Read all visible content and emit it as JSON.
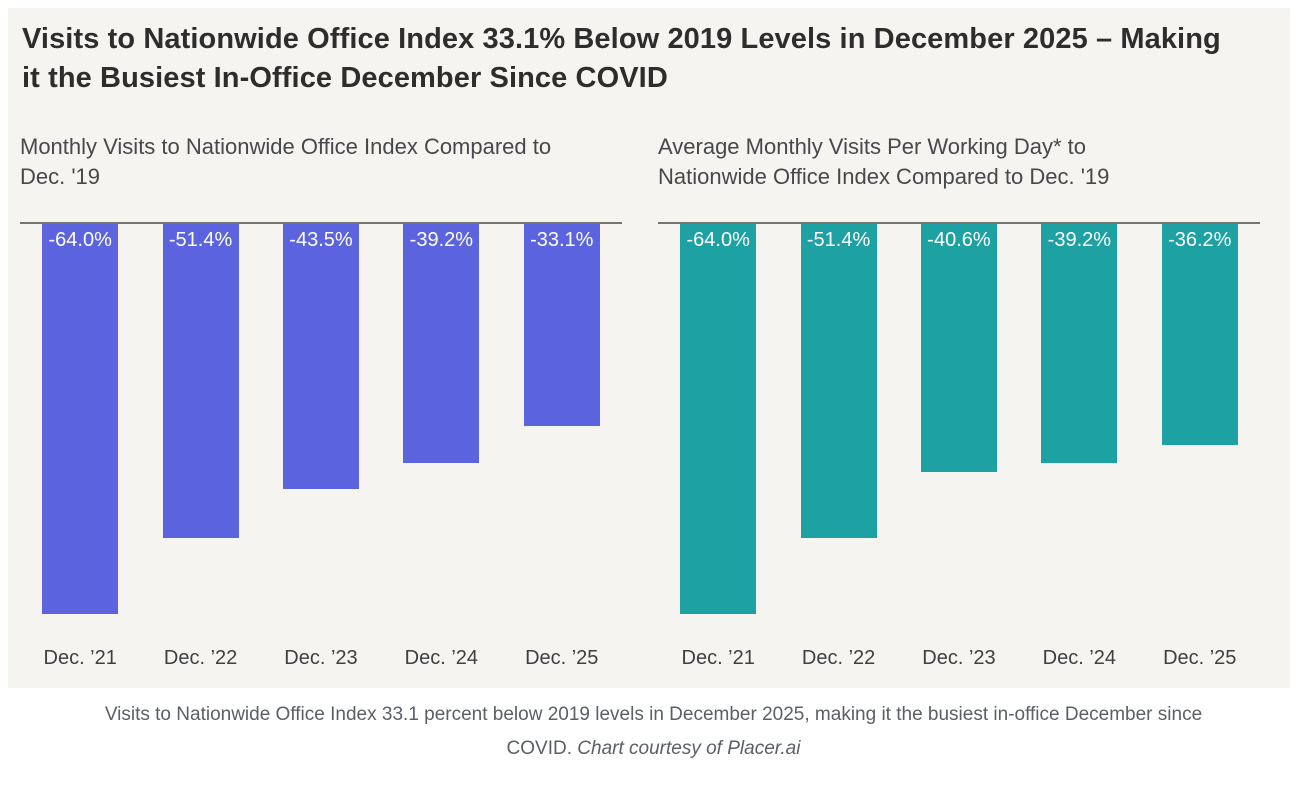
{
  "page": {
    "title": "Visits to Nationwide Office Index 33.1% Below 2019 Levels in December 2025 – Making it the Busiest In-Office December Since COVID",
    "caption": {
      "line1": "Visits to Nationwide Office Index 33.1 percent below 2019 levels in December 2025, making it the busiest in-office December since",
      "line2_text": "COVID. ",
      "line2_credit": "Chart courtesy of Placer.ai"
    }
  },
  "colors": {
    "card_background": "#f6f4f1",
    "title_text": "#2d2d2d",
    "subtitle_text": "#46484b",
    "axis_line": "#78746d",
    "bar_label_text": "#ffffff",
    "left_bar": "#5b63de",
    "right_bar": "#1da1a2"
  },
  "chart_data": [
    {
      "type": "bar",
      "title": "Monthly Visits to Nationwide Office Index Compared to Dec. '19",
      "categories": [
        "Dec. ’21",
        "Dec. ’22",
        "Dec. ’23",
        "Dec. ’24",
        "Dec. ’25"
      ],
      "values": [
        -64.0,
        -51.4,
        -43.5,
        -39.2,
        -33.1
      ],
      "value_labels": [
        "-64.0%",
        "-51.4%",
        "-43.5%",
        "-39.2%",
        "-33.1%"
      ],
      "bar_color": "#5b63de",
      "baseline": 0,
      "ylim": [
        -70,
        0
      ],
      "direction": "down-from-zero",
      "grid": false,
      "legend": false,
      "xlabel": "",
      "ylabel": ""
    },
    {
      "type": "bar",
      "title": "Average Monthly Visits Per Working Day* to Nationwide Office Index Compared to Dec. '19",
      "categories": [
        "Dec. ’21",
        "Dec. ’22",
        "Dec. ’23",
        "Dec. ’24",
        "Dec. ’25"
      ],
      "values": [
        -64.0,
        -51.4,
        -40.6,
        -39.2,
        -36.2
      ],
      "value_labels": [
        "-64.0%",
        "-51.4%",
        "-40.6%",
        "-39.2%",
        "-36.2%"
      ],
      "bar_color": "#1da1a2",
      "baseline": 0,
      "ylim": [
        -70,
        0
      ],
      "direction": "down-from-zero",
      "grid": false,
      "legend": false,
      "xlabel": "",
      "ylabel": ""
    }
  ]
}
